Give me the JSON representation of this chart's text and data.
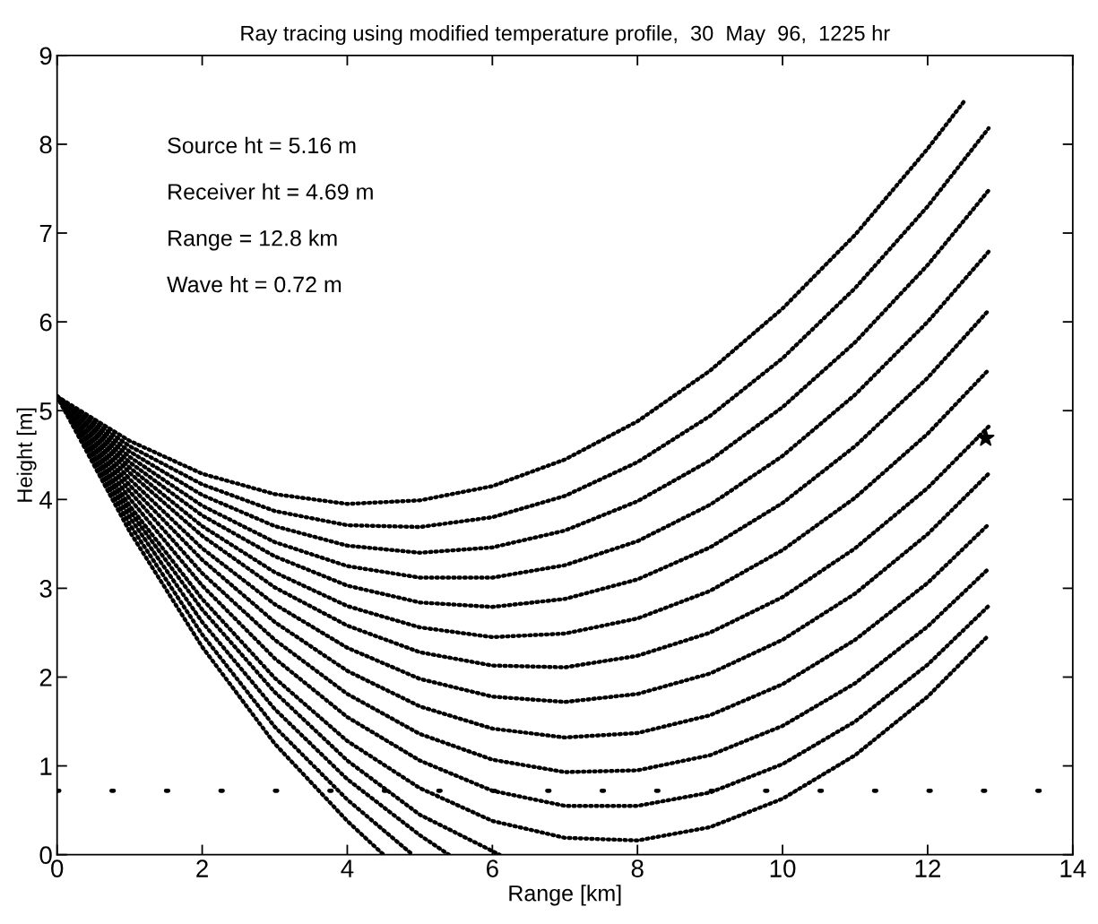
{
  "chart_data": {
    "type": "line",
    "title": "Ray tracing using modified temperature profile,  30  May  96,  1225 hr",
    "xlabel": "Range [km]",
    "ylabel": "Height [m]",
    "xlim": [
      0,
      14
    ],
    "ylim": [
      0,
      9
    ],
    "xticks": [
      0,
      2,
      4,
      6,
      8,
      10,
      12,
      14
    ],
    "yticks": [
      0,
      1,
      2,
      3,
      4,
      5,
      6,
      7,
      8,
      9
    ],
    "grid": false,
    "legend": false,
    "line_style": "dotted",
    "marker": "none",
    "annotations": [
      "Source ht = 5.16 m",
      "Receiver ht = 4.69 m",
      "Range = 12.8 km",
      "Wave ht = 0.72 m"
    ],
    "ref_lines": [
      {
        "axis": "y",
        "value": 0.72,
        "label": null,
        "color": "#000000",
        "line_style": "dotted"
      }
    ],
    "series": [
      {
        "color": "#000000",
        "x": [
          0,
          1,
          2,
          3,
          4,
          5,
          6,
          7,
          8,
          9,
          10,
          11,
          12,
          12.5
        ],
        "values": [
          5.16,
          4.66,
          4.29,
          4.06,
          3.95,
          3.99,
          4.15,
          4.45,
          4.88,
          5.45,
          6.15,
          6.98,
          7.95,
          8.48
        ]
      },
      {
        "color": "#000000",
        "x": [
          0,
          1,
          2,
          3,
          4,
          5,
          6,
          7,
          8,
          9,
          10,
          11,
          12,
          12.84
        ],
        "values": [
          5.16,
          4.6,
          4.17,
          3.87,
          3.71,
          3.69,
          3.8,
          4.04,
          4.42,
          4.94,
          5.59,
          6.38,
          7.3,
          8.18
        ]
      },
      {
        "color": "#000000",
        "x": [
          0,
          1,
          2,
          3,
          4,
          5,
          6,
          7,
          8,
          9,
          10,
          11,
          12,
          12.84
        ],
        "values": [
          5.16,
          4.54,
          4.05,
          3.7,
          3.48,
          3.4,
          3.46,
          3.65,
          3.98,
          4.44,
          5.04,
          5.77,
          6.64,
          7.48
        ]
      },
      {
        "color": "#000000",
        "x": [
          0,
          1,
          2,
          3,
          4,
          5,
          6,
          7,
          8,
          9,
          10,
          11,
          12,
          12.84
        ],
        "values": [
          5.16,
          4.48,
          3.93,
          3.52,
          3.25,
          3.12,
          3.12,
          3.26,
          3.53,
          3.94,
          4.49,
          5.18,
          6.0,
          6.79
        ]
      },
      {
        "color": "#000000",
        "x": [
          0,
          1,
          2,
          3,
          4,
          5,
          6,
          7,
          8,
          9,
          10,
          11,
          12,
          12.84
        ],
        "values": [
          5.16,
          4.42,
          3.82,
          3.36,
          3.03,
          2.84,
          2.79,
          2.88,
          3.1,
          3.46,
          3.96,
          4.6,
          5.37,
          6.13
        ]
      },
      {
        "color": "#000000",
        "x": [
          0,
          1,
          2,
          3,
          4,
          5,
          6,
          7,
          8,
          9,
          10,
          11,
          12,
          12.84
        ],
        "values": [
          5.16,
          4.36,
          3.7,
          3.18,
          2.8,
          2.56,
          2.45,
          2.49,
          2.66,
          2.97,
          3.43,
          4.02,
          4.74,
          5.46
        ]
      },
      {
        "color": "#000000",
        "x": [
          0,
          1,
          2,
          3,
          4,
          5,
          6,
          7,
          8,
          9,
          10,
          11,
          12,
          12.84
        ],
        "values": [
          5.16,
          4.3,
          3.59,
          3.01,
          2.58,
          2.28,
          2.13,
          2.11,
          2.24,
          2.5,
          2.9,
          3.45,
          4.13,
          4.82
        ]
      },
      {
        "color": "#000000",
        "x": [
          0,
          1,
          2,
          3,
          4,
          5,
          6,
          7,
          8,
          9,
          10,
          11,
          12,
          12.84
        ],
        "values": [
          5.16,
          4.23,
          3.45,
          2.82,
          2.33,
          1.98,
          1.78,
          1.72,
          1.81,
          2.04,
          2.42,
          2.94,
          3.61,
          4.29
        ]
      },
      {
        "color": "#000000",
        "x": [
          0,
          1,
          2,
          3,
          4,
          5,
          6,
          7,
          8,
          9,
          10,
          11,
          12,
          12.84
        ],
        "values": [
          5.16,
          4.16,
          3.32,
          2.62,
          2.07,
          1.67,
          1.42,
          1.32,
          1.37,
          1.57,
          1.92,
          2.42,
          3.06,
          3.72
        ]
      },
      {
        "color": "#000000",
        "x": [
          0,
          1,
          2,
          3,
          4,
          5,
          6,
          7,
          8,
          9,
          10,
          11,
          12,
          12.84
        ],
        "values": [
          5.16,
          4.09,
          3.17,
          2.42,
          1.81,
          1.36,
          1.07,
          0.93,
          0.95,
          1.12,
          1.45,
          1.93,
          2.57,
          3.22
        ]
      },
      {
        "color": "#000000",
        "x": [
          0,
          1,
          2,
          3,
          4,
          5,
          6,
          7,
          8,
          9,
          10,
          11,
          12,
          12.84
        ],
        "values": [
          5.16,
          4.01,
          3.03,
          2.21,
          1.55,
          1.06,
          0.72,
          0.55,
          0.55,
          0.7,
          1.02,
          1.5,
          2.14,
          2.8
        ]
      },
      {
        "color": "#000000",
        "x": [
          0,
          1,
          2,
          3,
          4,
          5,
          6,
          7,
          8,
          9,
          10,
          11,
          12,
          12.84
        ],
        "values": [
          5.16,
          3.93,
          2.88,
          1.99,
          1.28,
          0.75,
          0.38,
          0.19,
          0.16,
          0.31,
          0.63,
          1.12,
          1.78,
          2.47
        ]
      },
      {
        "color": "#000000",
        "x": [
          0,
          1,
          2,
          3,
          4,
          5,
          6.1
        ],
        "values": [
          5.16,
          3.87,
          2.76,
          1.83,
          1.06,
          0.45,
          0
        ]
      },
      {
        "color": "#000000",
        "x": [
          0,
          1,
          2,
          3,
          4,
          5,
          5.4
        ],
        "values": [
          5.16,
          3.8,
          2.62,
          1.64,
          0.85,
          0.22,
          0
        ]
      },
      {
        "color": "#000000",
        "x": [
          0,
          1,
          2,
          3,
          4,
          4.9
        ],
        "values": [
          5.16,
          3.72,
          2.48,
          1.44,
          0.62,
          0
        ]
      },
      {
        "color": "#000000",
        "x": [
          0,
          1,
          2,
          3,
          4,
          4.5
        ],
        "values": [
          5.16,
          3.64,
          2.34,
          1.25,
          0.38,
          0
        ]
      },
      {
        "type": "scatter",
        "marker": "star",
        "color": "#000000",
        "x": [
          12.8
        ],
        "values": [
          4.69
        ]
      }
    ]
  }
}
